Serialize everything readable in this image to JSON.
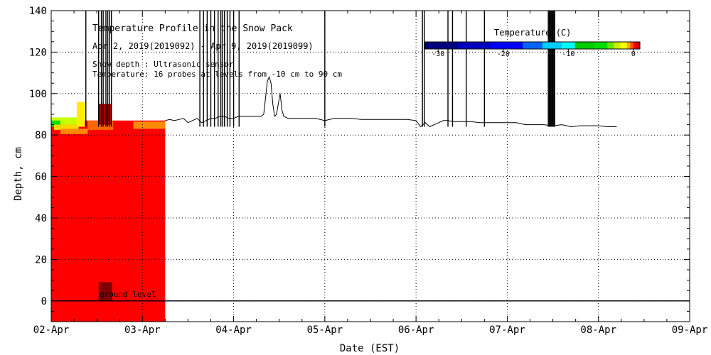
{
  "chart_data": {
    "type": "heatmap",
    "title": "Temperature Profile in the Snow Pack",
    "subtitle": "Apr  2, 2019(2019092) - Apr  9, 2019(2019099)",
    "notes": [
      "Snow depth : Ultrasonic sensor",
      "Temperature: 16 probes at levels from -10 cm to 90 cm"
    ],
    "xlabel": "Date (EST)",
    "ylabel": "Depth, cm",
    "x_ticks": [
      "02-Apr",
      "03-Apr",
      "04-Apr",
      "05-Apr",
      "06-Apr",
      "07-Apr",
      "08-Apr",
      "09-Apr"
    ],
    "xlim_days": [
      0,
      7
    ],
    "ylim": [
      -10,
      140
    ],
    "y_ticks": [
      0,
      20,
      40,
      60,
      80,
      100,
      120,
      140
    ],
    "grid": true,
    "ground_level_label": "ground level",
    "colorbar": {
      "title": "Temperature (C)",
      "range": [
        -32,
        1
      ],
      "tick_values": [
        -30,
        -20,
        -10,
        0
      ],
      "tick_labels": [
        "-30",
        "-20",
        "-10",
        "0"
      ],
      "stops": [
        {
          "t": -32,
          "color": "#00007f"
        },
        {
          "t": -27,
          "color": "#0000bf"
        },
        {
          "t": -22,
          "color": "#0000ff"
        },
        {
          "t": -17,
          "color": "#0066ff"
        },
        {
          "t": -14,
          "color": "#00ccff"
        },
        {
          "t": -11,
          "color": "#00ffff"
        },
        {
          "t": -9,
          "color": "#00cc00"
        },
        {
          "t": -6,
          "color": "#00dd00"
        },
        {
          "t": -4,
          "color": "#66e600"
        },
        {
          "t": -3,
          "color": "#ccee00"
        },
        {
          "t": -2,
          "color": "#ffff00"
        },
        {
          "t": -1,
          "color": "#ffb000"
        },
        {
          "t": -0.5,
          "color": "#ff5500"
        },
        {
          "t": 0,
          "color": "#ff0000"
        },
        {
          "t": 0.5,
          "color": "#cc0000"
        },
        {
          "t": 1,
          "color": "#7f0000"
        }
      ]
    },
    "temperature_field": {
      "x_range_days": [
        0,
        1.25
      ],
      "main_color": "#ff0000",
      "patches": [
        {
          "x": [
            0,
            0.3
          ],
          "y": [
            85,
            88.5
          ],
          "color": "#c8ff00"
        },
        {
          "x": [
            0,
            0.1
          ],
          "y": [
            84,
            87
          ],
          "color": "#00dd00"
        },
        {
          "x": [
            0.03,
            0.3
          ],
          "y": [
            82.5,
            85
          ],
          "color": "#ffd700"
        },
        {
          "x": [
            0.1,
            0.4
          ],
          "y": [
            80.5,
            83
          ],
          "color": "#ff8c00"
        },
        {
          "x": [
            0.28,
            0.37
          ],
          "y": [
            84,
            96
          ],
          "color": "#ffee00"
        },
        {
          "x": [
            0.4,
            0.68
          ],
          "y": [
            82.5,
            87
          ],
          "color": "#ff6600"
        },
        {
          "x": [
            0.52,
            0.66
          ],
          "y": [
            85,
            95
          ],
          "color": "#aa0000"
        },
        {
          "x": [
            0.9,
            1.25
          ],
          "y": [
            83,
            86.5
          ],
          "color": "#ff8c00"
        },
        {
          "x": [
            0.52,
            0.67
          ],
          "y": [
            0,
            9
          ],
          "color": "#7f0000"
        }
      ]
    },
    "snow_depth": {
      "x": [
        1.25,
        1.3,
        1.35,
        1.4,
        1.45,
        1.5,
        1.55,
        1.6,
        1.65,
        1.7,
        1.75,
        1.8,
        1.85,
        1.9,
        1.95,
        2.0,
        2.05,
        2.1,
        2.15,
        2.2,
        2.25,
        2.3,
        2.33,
        2.35,
        2.37,
        2.39,
        2.41,
        2.43,
        2.45,
        2.47,
        2.49,
        2.51,
        2.53,
        2.55,
        2.6,
        2.7,
        2.8,
        2.9,
        3.0,
        3.1,
        3.2,
        3.3,
        3.4,
        3.5,
        3.6,
        3.7,
        3.8,
        3.9,
        4.0,
        4.05,
        4.1,
        4.15,
        4.2,
        4.25,
        4.3,
        4.35,
        4.4,
        4.5,
        4.6,
        4.7,
        4.8,
        4.9,
        5.0,
        5.1,
        5.2,
        5.3,
        5.4,
        5.5,
        5.6,
        5.7,
        5.8,
        5.9,
        6.0,
        6.1,
        6.2
      ],
      "depth": [
        87,
        87.5,
        87,
        87.5,
        88,
        86,
        87,
        88,
        86,
        87,
        88,
        88,
        89,
        89,
        88,
        88,
        89,
        89,
        89,
        89,
        89,
        89,
        90,
        98,
        106,
        108,
        105,
        95,
        89,
        90,
        95,
        100,
        92,
        89,
        88,
        88,
        88,
        88,
        87,
        88,
        88,
        88,
        87.5,
        87.5,
        87.5,
        87.5,
        87.5,
        87.5,
        87,
        84,
        86,
        84,
        85,
        86,
        87,
        87,
        86.5,
        86.5,
        86.5,
        86,
        86,
        86,
        86,
        86,
        85,
        85,
        85,
        84.5,
        85,
        84,
        84.5,
        84.5,
        84.5,
        84,
        84
      ]
    },
    "data_gap_spikes_days": [
      0.38,
      0.52,
      0.55,
      0.57,
      0.6,
      0.62,
      0.64,
      0.66,
      1.63,
      1.67,
      1.71,
      1.75,
      1.79,
      1.83,
      1.86,
      1.88,
      1.9,
      1.93,
      1.96,
      2.0,
      2.06,
      3.0,
      4.07,
      4.09,
      4.35,
      4.4,
      4.55,
      4.75,
      5.45,
      5.46,
      5.47,
      5.48,
      5.49,
      5.5,
      5.51,
      5.52
    ]
  }
}
